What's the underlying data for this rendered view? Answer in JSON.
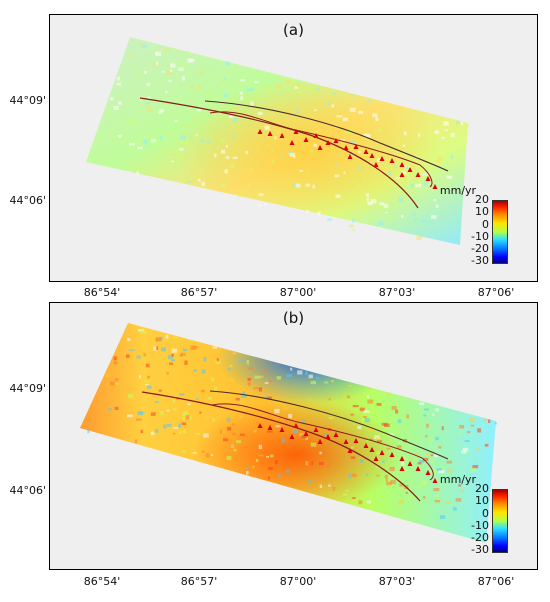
{
  "panels": [
    {
      "label": "(a)"
    },
    {
      "label": "(b)"
    }
  ],
  "latitude_labels": [
    "44°09'",
    "44°06'"
  ],
  "longitude_labels": [
    "86°54'",
    "86°57'",
    "87°00'",
    "87°03'",
    "87°06'"
  ],
  "colorbar": {
    "unit": "mm/yr",
    "ticks": [
      "20",
      "10",
      "0",
      "-10",
      "-20",
      "-30"
    ],
    "range": [
      -30,
      20
    ],
    "colors": [
      "#a50000",
      "#ff2200",
      "#ff8c00",
      "#ffe400",
      "#b0ff4a",
      "#2de0ff",
      "#0070ff",
      "#00008a"
    ]
  },
  "colors": {
    "fault_line": "#8b1a1a",
    "secondary_fault_line": "#4a2a2a",
    "station_marker": "#e00000",
    "terrain_background": "#efefef"
  }
}
